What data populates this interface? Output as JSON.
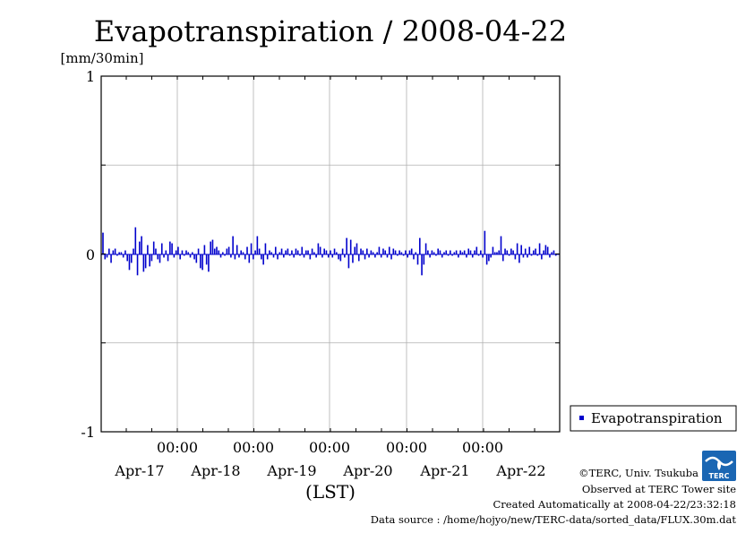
{
  "chart_data": {
    "type": "bar",
    "title": "Evapotranspiration / 2008-04-22",
    "ylabel": "[mm/30min]",
    "xlabel": "(LST)",
    "ylim": [
      -1,
      1
    ],
    "yticks": [
      "1",
      "0",
      "-1"
    ],
    "x_time_ticks": [
      "00:00",
      "00:00",
      "00:00",
      "00:00",
      "00:00"
    ],
    "x_date_ticks": [
      "Apr-17",
      "Apr-18",
      "Apr-19",
      "Apr-20",
      "Apr-21",
      "Apr-22"
    ],
    "grid": true,
    "legend_position": "right",
    "series": [
      {
        "name": "Evapotranspiration",
        "color": "#0000cc",
        "values": [
          0.12,
          -0.03,
          -0.02,
          0.03,
          -0.05,
          0.02,
          0.03,
          -0.01,
          0.01,
          0.01,
          -0.02,
          0.02,
          -0.04,
          -0.09,
          -0.05,
          0.03,
          0.15,
          -0.12,
          0.07,
          0.1,
          -0.1,
          -0.08,
          0.05,
          -0.07,
          -0.04,
          0.07,
          0.03,
          -0.03,
          -0.05,
          0.06,
          -0.02,
          0.02,
          -0.04,
          0.07,
          0.06,
          -0.02,
          0.02,
          0.04,
          -0.03,
          0.02,
          -0.01,
          0.02,
          0.01,
          -0.02,
          0.01,
          -0.03,
          -0.05,
          0.03,
          -0.08,
          -0.09,
          0.05,
          -0.06,
          -0.1,
          0.07,
          0.08,
          0.03,
          0.04,
          0.02,
          -0.02,
          0.01,
          -0.01,
          0.03,
          0.04,
          -0.02,
          0.1,
          -0.03,
          0.05,
          -0.02,
          0.02,
          0.01,
          -0.03,
          0.04,
          -0.05,
          0.06,
          -0.03,
          0.02,
          0.1,
          0.03,
          -0.03,
          -0.06,
          0.06,
          -0.03,
          0.02,
          0.01,
          -0.02,
          0.04,
          -0.03,
          0.01,
          0.03,
          -0.02,
          0.02,
          0.03,
          -0.01,
          0.02,
          -0.02,
          0.03,
          0.02,
          -0.01,
          0.04,
          -0.02,
          0.02,
          0.02,
          -0.03,
          0.03,
          0.01,
          -0.02,
          0.06,
          0.04,
          -0.02,
          0.03,
          0.02,
          -0.02,
          0.02,
          -0.02,
          0.03,
          0.01,
          -0.03,
          -0.04,
          0.03,
          -0.02,
          0.09,
          -0.08,
          0.08,
          -0.05,
          0.04,
          0.06,
          -0.04,
          0.03,
          0.02,
          -0.03,
          0.03,
          -0.02,
          0.02,
          0.01,
          -0.02,
          0.01,
          0.04,
          -0.02,
          0.03,
          0.02,
          -0.02,
          0.04,
          -0.03,
          0.03,
          0.02,
          -0.01,
          0.02,
          0.01,
          -0.01,
          0.02,
          -0.02,
          0.02,
          0.03,
          -0.03,
          0.01,
          -0.06,
          0.09,
          -0.12,
          -0.06,
          0.06,
          0.02,
          -0.02,
          0.02,
          0.01,
          -0.01,
          0.03,
          0.02,
          -0.02,
          0.01,
          0.02,
          -0.01,
          0.02,
          -0.01,
          0.01,
          0.02,
          -0.02,
          0.02,
          0.01,
          0.02,
          -0.02,
          0.03,
          0.02,
          -0.02,
          0.02,
          0.04,
          -0.01,
          0.02,
          -0.02,
          0.13,
          -0.06,
          -0.04,
          -0.02,
          0.04,
          0.01,
          0.01,
          0.02,
          0.1,
          -0.04,
          0.03,
          0.02,
          -0.01,
          0.03,
          0.02,
          -0.03,
          0.06,
          -0.05,
          0.05,
          -0.02,
          0.03,
          -0.02,
          0.04,
          -0.01,
          0.02,
          0.03,
          -0.01,
          0.06,
          -0.03,
          0.02,
          0.05,
          0.04,
          -0.02,
          0.01,
          0.02,
          -0.01
        ]
      }
    ]
  },
  "footer": {
    "copyright": "©TERC, Univ. Tsukuba",
    "site": "Observed at TERC Tower site",
    "created": "Created Automatically at 2008-04-22/23:32:18",
    "source": "Data source : /home/hojyo/new/TERC-data/sorted_data/FLUX.30m.dat"
  },
  "logo": {
    "text": "TERC",
    "color": "#1a66b3"
  }
}
